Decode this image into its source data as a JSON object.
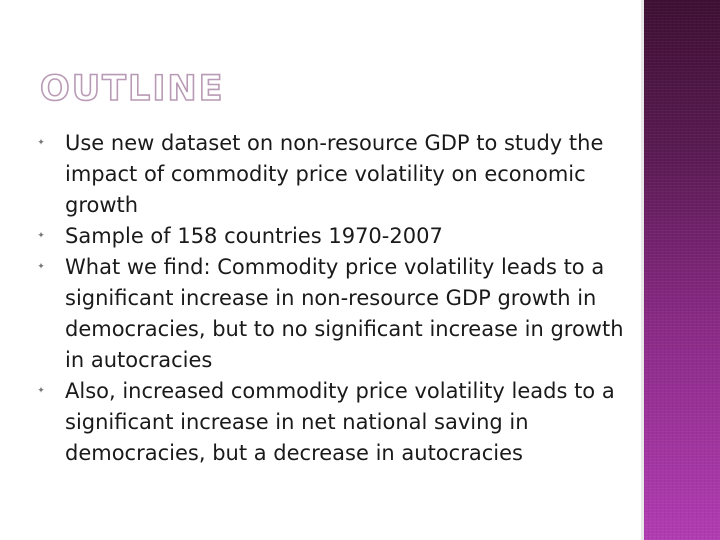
{
  "slide": {
    "title": "OUTLINE",
    "bullet_icon": "bullet-marker-icon",
    "bullet_symbol": "✦",
    "bullets": [
      "Use new dataset on non-resource GDP to study the impact of commodity price volatility on economic growth",
      "Sample of 158 countries 1970-2007",
      "What we find: Commodity price volatility leads to a significant increase in non-resource GDP growth in democracies, but to no significant increase in growth in autocracies",
      "Also, increased commodity price volatility leads to a significant increase in net national saving in democracies, but a decrease in autocracies"
    ]
  },
  "colors": {
    "title_outline": "#b99bb5",
    "text": "#1a1a1a",
    "side_panel_top": "#3e1033",
    "side_panel_bottom": "#b23cb3"
  }
}
